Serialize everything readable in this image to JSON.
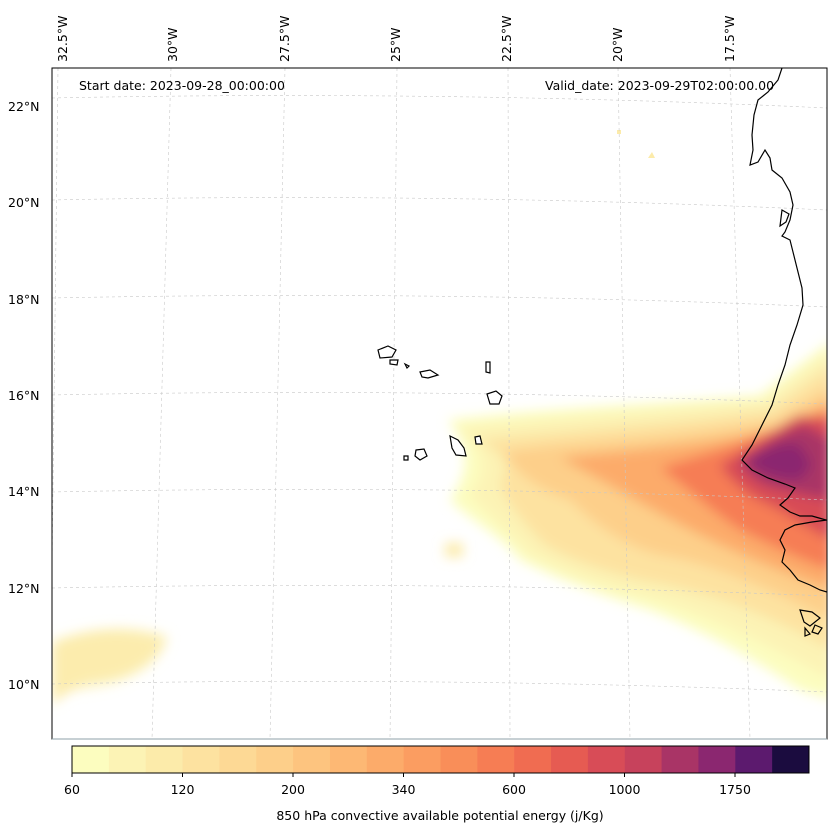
{
  "header": {
    "start_date": "Start date: 2023-09-28_00:00:00",
    "valid_date": "Valid_date: 2023-09-29T02:00:00.00"
  },
  "axes": {
    "lon_labels": [
      "32.5°W",
      "30°W",
      "27.5°W",
      "25°W",
      "22.5°W",
      "20°W",
      "17.5°W"
    ],
    "lat_labels": [
      "22°N",
      "20°N",
      "18°N",
      "16°N",
      "14°N",
      "12°N",
      "10°N"
    ],
    "lon_range": [
      -32.8,
      -15.9
    ],
    "lat_range": [
      8.9,
      22.6
    ]
  },
  "colorbar": {
    "title": "850 hPa convective available potential energy (j/Kg)",
    "tick_labels": [
      "60",
      "120",
      "200",
      "340",
      "600",
      "1000",
      "1750"
    ],
    "levels": 20,
    "colors": [
      "#fcfdbf",
      "#fcf3b5",
      "#fcebaa",
      "#fde2a0",
      "#fdd995",
      "#fdcf8a",
      "#fdc47f",
      "#fdb874",
      "#fcab6a",
      "#fb9d61",
      "#f98e59",
      "#f67d54",
      "#f06c51",
      "#e65b52",
      "#d84c57",
      "#c7425c",
      "#a93466",
      "#8b2770",
      "#5c1a6e",
      "#1b0c3f"
    ]
  },
  "map_data": {
    "field": "850 hPa CAPE",
    "islands": [
      "Santo Antão",
      "São Vicente",
      "São Nicolau",
      "Sal",
      "Boa Vista",
      "Santiago",
      "Fogo",
      "Maio",
      "Brava"
    ]
  }
}
